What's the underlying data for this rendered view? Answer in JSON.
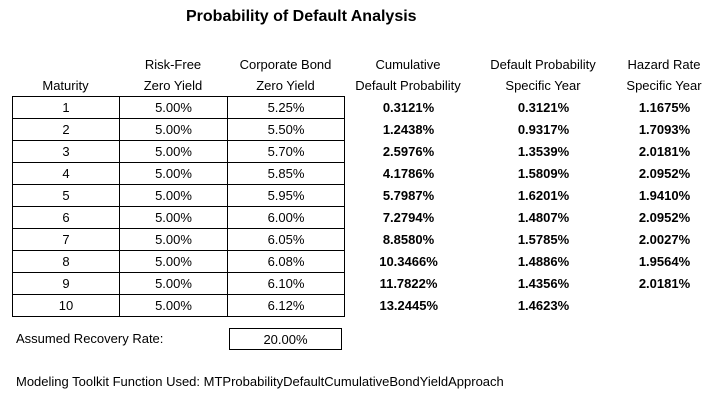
{
  "title": "Probability of Default Analysis",
  "headers": {
    "maturity": [
      "",
      "Maturity"
    ],
    "risk_free": [
      "Risk-Free",
      "Zero Yield"
    ],
    "corporate": [
      "Corporate Bond",
      "Zero Yield"
    ],
    "cumulative": [
      "Cumulative",
      "Default Probability"
    ],
    "default_specific": [
      "Default Probability",
      "Specific Year"
    ],
    "hazard": [
      "Hazard Rate",
      "Specific Year"
    ]
  },
  "rows": [
    {
      "maturity": "1",
      "risk_free": "5.00%",
      "corporate": "5.25%",
      "cumulative": "0.3121%",
      "default_specific": "0.3121%",
      "hazard": "1.1675%"
    },
    {
      "maturity": "2",
      "risk_free": "5.00%",
      "corporate": "5.50%",
      "cumulative": "1.2438%",
      "default_specific": "0.9317%",
      "hazard": "1.7093%"
    },
    {
      "maturity": "3",
      "risk_free": "5.00%",
      "corporate": "5.70%",
      "cumulative": "2.5976%",
      "default_specific": "1.3539%",
      "hazard": "2.0181%"
    },
    {
      "maturity": "4",
      "risk_free": "5.00%",
      "corporate": "5.85%",
      "cumulative": "4.1786%",
      "default_specific": "1.5809%",
      "hazard": "2.0952%"
    },
    {
      "maturity": "5",
      "risk_free": "5.00%",
      "corporate": "5.95%",
      "cumulative": "5.7987%",
      "default_specific": "1.6201%",
      "hazard": "1.9410%"
    },
    {
      "maturity": "6",
      "risk_free": "5.00%",
      "corporate": "6.00%",
      "cumulative": "7.2794%",
      "default_specific": "1.4807%",
      "hazard": "2.0952%"
    },
    {
      "maturity": "7",
      "risk_free": "5.00%",
      "corporate": "6.05%",
      "cumulative": "8.8580%",
      "default_specific": "1.5785%",
      "hazard": "2.0027%"
    },
    {
      "maturity": "8",
      "risk_free": "5.00%",
      "corporate": "6.08%",
      "cumulative": "10.3466%",
      "default_specific": "1.4886%",
      "hazard": "1.9564%"
    },
    {
      "maturity": "9",
      "risk_free": "5.00%",
      "corporate": "6.10%",
      "cumulative": "11.7822%",
      "default_specific": "1.4356%",
      "hazard": "2.0181%"
    },
    {
      "maturity": "10",
      "risk_free": "5.00%",
      "corporate": "6.12%",
      "cumulative": "13.2445%",
      "default_specific": "1.4623%",
      "hazard": ""
    }
  ],
  "recovery": {
    "label": "Assumed Recovery Rate:",
    "value": "20.00%"
  },
  "toolkit": "Modeling Toolkit Function Used: MTProbabilityDefaultCumulativeBondYieldApproach"
}
